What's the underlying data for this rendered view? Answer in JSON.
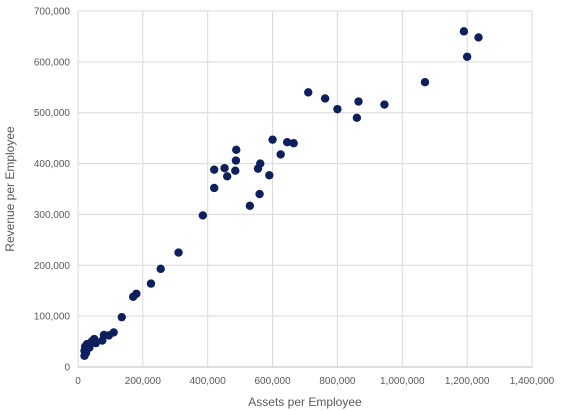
{
  "chart_data": {
    "type": "scatter",
    "xlabel": "Assets per Employee",
    "ylabel": "Revenue per Employee",
    "xlim": [
      0,
      1400000
    ],
    "ylim": [
      0,
      700000
    ],
    "x_ticks": [
      0,
      200000,
      400000,
      600000,
      800000,
      1000000,
      1200000,
      1400000
    ],
    "y_ticks": [
      0,
      100000,
      200000,
      300000,
      400000,
      500000,
      600000,
      700000
    ],
    "x_tick_labels": [
      "0",
      "200,000",
      "400,000",
      "600,000",
      "800,000",
      "1,000,000",
      "1,200,000",
      "1,400,000"
    ],
    "y_tick_labels": [
      "0",
      "100,000",
      "200,000",
      "300,000",
      "400,000",
      "500,000",
      "600,000",
      "700,000"
    ],
    "grid": true,
    "marker_color": "#0d1f5c",
    "points": [
      {
        "x": 20000,
        "y": 22000
      },
      {
        "x": 20000,
        "y": 32000
      },
      {
        "x": 22000,
        "y": 40000
      },
      {
        "x": 25000,
        "y": 28000
      },
      {
        "x": 28000,
        "y": 45000
      },
      {
        "x": 35000,
        "y": 38000
      },
      {
        "x": 42000,
        "y": 50000
      },
      {
        "x": 50000,
        "y": 55000
      },
      {
        "x": 55000,
        "y": 47000
      },
      {
        "x": 75000,
        "y": 52000
      },
      {
        "x": 80000,
        "y": 63000
      },
      {
        "x": 95000,
        "y": 62000
      },
      {
        "x": 110000,
        "y": 68000
      },
      {
        "x": 135000,
        "y": 98000
      },
      {
        "x": 170000,
        "y": 138000
      },
      {
        "x": 180000,
        "y": 144000
      },
      {
        "x": 225000,
        "y": 164000
      },
      {
        "x": 255000,
        "y": 193000
      },
      {
        "x": 310000,
        "y": 225000
      },
      {
        "x": 385000,
        "y": 298000
      },
      {
        "x": 420000,
        "y": 352000
      },
      {
        "x": 420000,
        "y": 388000
      },
      {
        "x": 452000,
        "y": 391000
      },
      {
        "x": 460000,
        "y": 375000
      },
      {
        "x": 485000,
        "y": 386000
      },
      {
        "x": 487000,
        "y": 406000
      },
      {
        "x": 488000,
        "y": 427000
      },
      {
        "x": 530000,
        "y": 317000
      },
      {
        "x": 555000,
        "y": 390000
      },
      {
        "x": 560000,
        "y": 340000
      },
      {
        "x": 562000,
        "y": 400000
      },
      {
        "x": 590000,
        "y": 377000
      },
      {
        "x": 600000,
        "y": 447000
      },
      {
        "x": 625000,
        "y": 418000
      },
      {
        "x": 645000,
        "y": 442000
      },
      {
        "x": 665000,
        "y": 440000
      },
      {
        "x": 710000,
        "y": 540000
      },
      {
        "x": 762000,
        "y": 528000
      },
      {
        "x": 800000,
        "y": 507000
      },
      {
        "x": 860000,
        "y": 490000
      },
      {
        "x": 865000,
        "y": 522000
      },
      {
        "x": 945000,
        "y": 516000
      },
      {
        "x": 1070000,
        "y": 560000
      },
      {
        "x": 1190000,
        "y": 660000
      },
      {
        "x": 1200000,
        "y": 610000
      },
      {
        "x": 1235000,
        "y": 648000
      }
    ]
  }
}
